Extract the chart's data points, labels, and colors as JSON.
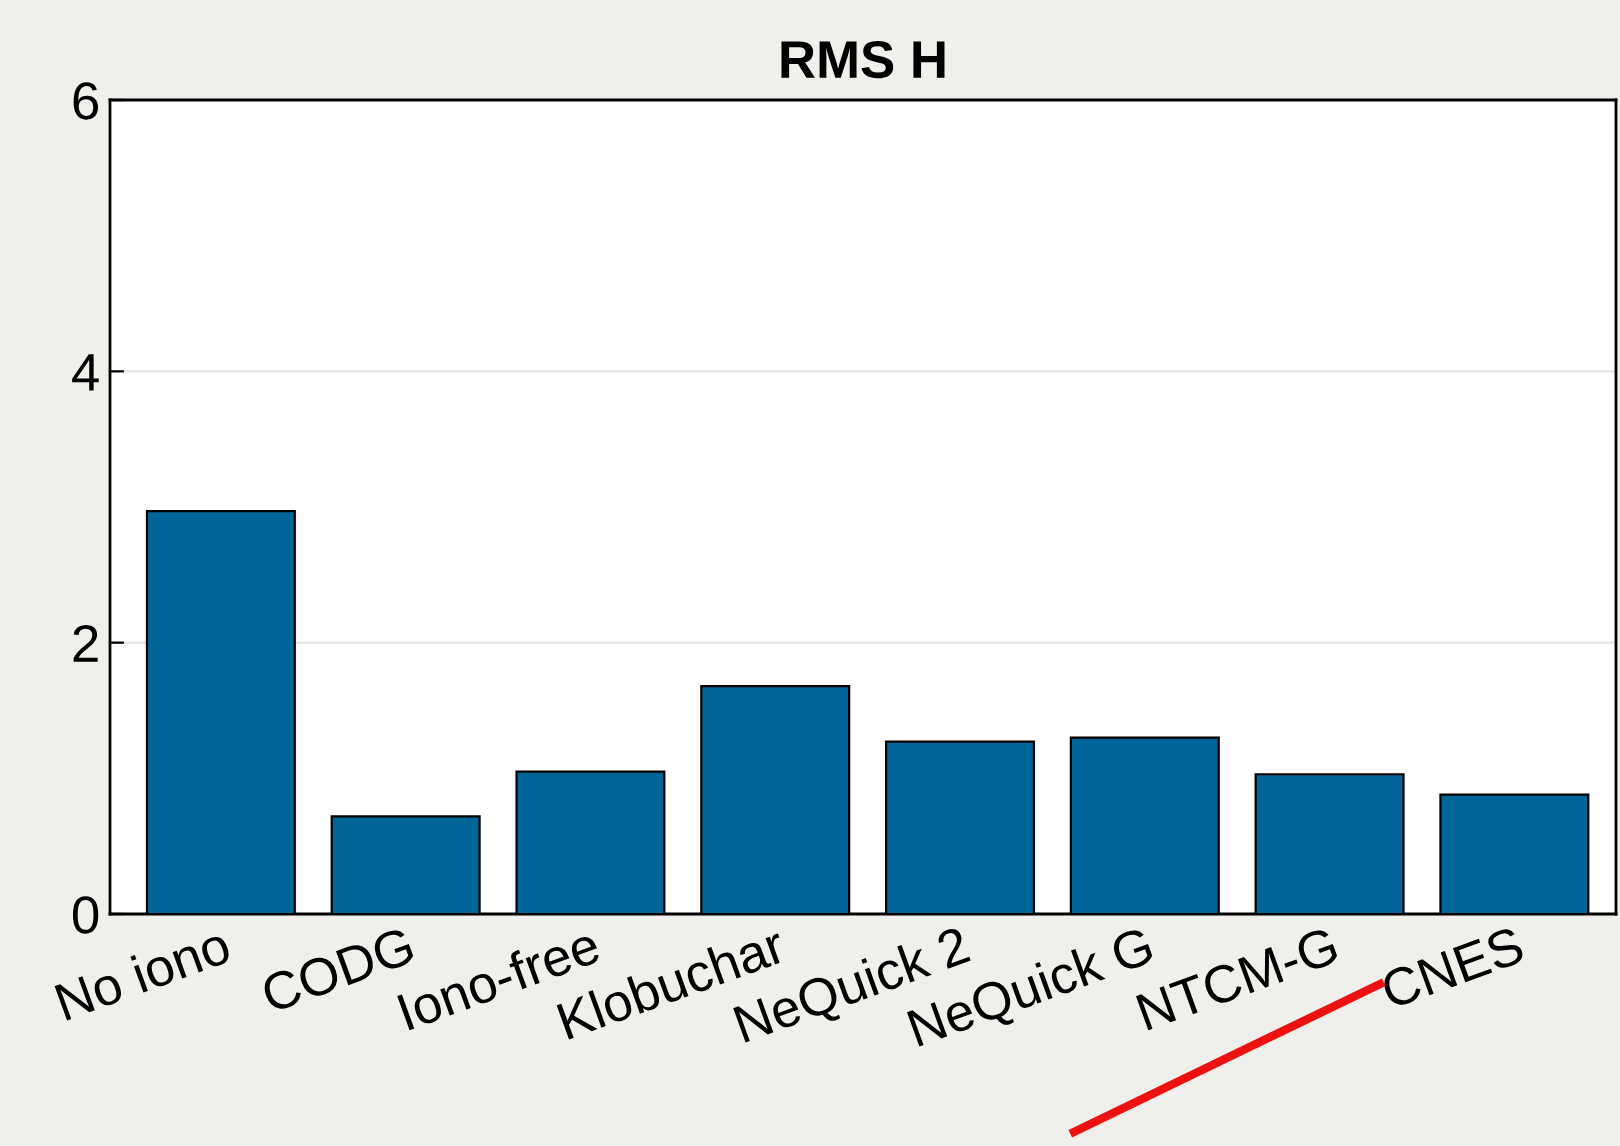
{
  "chart_data": {
    "type": "bar",
    "title": "RMS H",
    "categories": [
      "No iono",
      "CODG",
      "Iono-free",
      "Klobuchar",
      "NeQuick 2",
      "NeQuick G",
      "NTCM-G",
      "CNES"
    ],
    "values": [
      2.97,
      0.72,
      1.05,
      1.68,
      1.27,
      1.3,
      1.03,
      0.88
    ],
    "color": "#00669a",
    "ylim": [
      0,
      6
    ],
    "yticks": [
      0,
      2,
      4,
      6
    ],
    "grid": "y"
  }
}
